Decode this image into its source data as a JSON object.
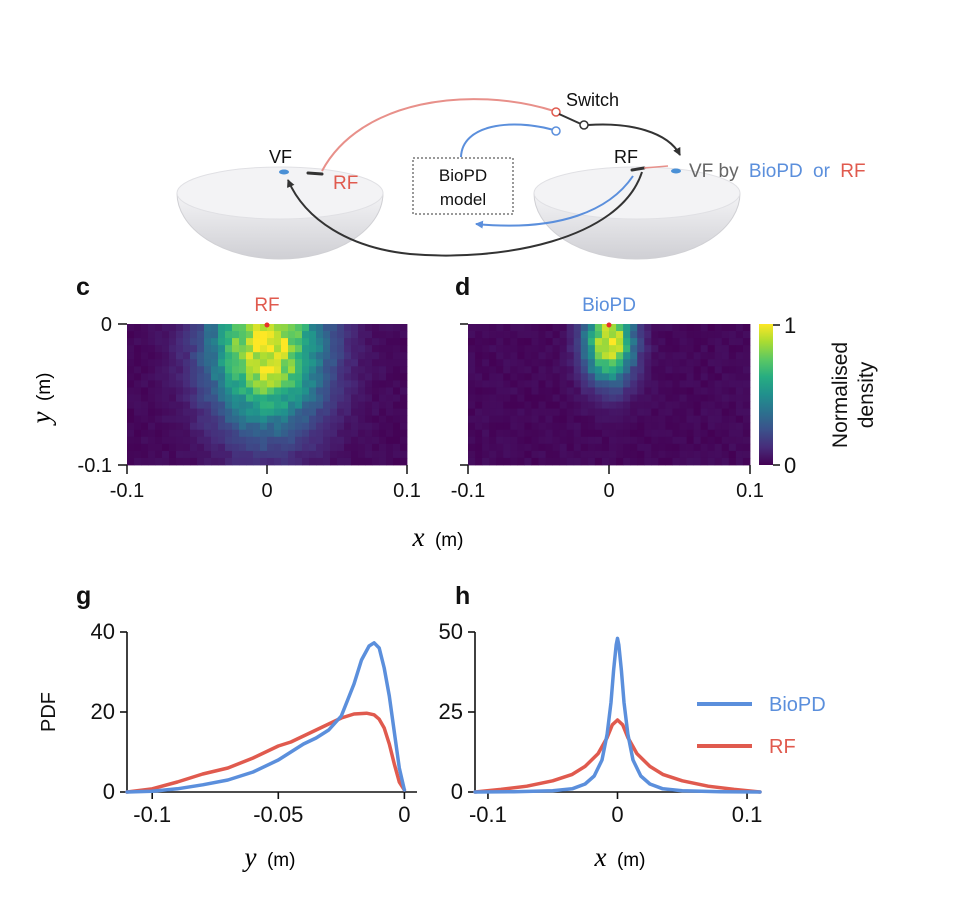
{
  "colors": {
    "biopd": "#5b8fdc",
    "rf": "#e05a4e",
    "rf_light": "#e8908a",
    "dark": "#333333",
    "gray_text": "#666666"
  },
  "schematic": {
    "vf_left": "VF",
    "rf_left": "RF",
    "switch_label": "Switch",
    "model_line1": "BioPD",
    "model_line2": "model",
    "rf_right": "RF",
    "vf_by": "VF by",
    "biopd_word": "BioPD",
    "or_word": "or",
    "rf_word": "RF"
  },
  "panels": {
    "c": {
      "letter": "c",
      "title": "RF"
    },
    "d": {
      "letter": "d",
      "title": "BioPD"
    },
    "g": {
      "letter": "g"
    },
    "h": {
      "letter": "h"
    }
  },
  "colorbar": {
    "label_line1": "Normalised",
    "label_line2": "density",
    "max": "1",
    "min": "0"
  },
  "chart_data": [
    {
      "type": "heatmap",
      "panel": "c",
      "title": "RF",
      "xlabel_var": "x",
      "xlabel_unit": "(m)",
      "ylabel_var": "y",
      "ylabel_unit": "(m)",
      "xlim": [
        -0.1,
        0.1
      ],
      "ylim": [
        -0.1,
        0
      ],
      "xticks": [
        "-0.1",
        "0",
        "0.1"
      ],
      "yticks": [
        "0",
        "-0.1"
      ],
      "peak": {
        "x": 0,
        "y": -0.015
      },
      "spread_x": 0.028,
      "spread_y": 0.04,
      "colormap": "viridis",
      "crange": [
        0,
        1
      ]
    },
    {
      "type": "heatmap",
      "panel": "d",
      "title": "BioPD",
      "xlim": [
        -0.1,
        0.1
      ],
      "ylim": [
        -0.1,
        0
      ],
      "xticks": [
        "-0.1",
        "0",
        "0.1"
      ],
      "peak": {
        "x": 0,
        "y": -0.012
      },
      "spread_x": 0.012,
      "spread_y": 0.02,
      "colormap": "viridis",
      "crange": [
        0,
        1
      ]
    },
    {
      "type": "line",
      "panel": "g",
      "xlabel_var": "y",
      "xlabel_unit": "(m)",
      "ylabel": "PDF",
      "xlim": [
        -0.11,
        0.005
      ],
      "ylim": [
        0,
        40
      ],
      "xticks": [
        -0.1,
        -0.05,
        0
      ],
      "xtick_labels": [
        "-0.1",
        "-0.05",
        "0"
      ],
      "yticks": [
        0,
        20,
        40
      ],
      "ytick_labels": [
        "0",
        "20",
        "40"
      ],
      "series": [
        {
          "name": "BioPD",
          "color": "#5b8fdc",
          "x": [
            -0.11,
            -0.1,
            -0.09,
            -0.08,
            -0.07,
            -0.06,
            -0.05,
            -0.045,
            -0.04,
            -0.035,
            -0.03,
            -0.025,
            -0.02,
            -0.017,
            -0.014,
            -0.012,
            -0.01,
            -0.008,
            -0.006,
            -0.004,
            -0.002,
            0
          ],
          "y": [
            0,
            0.2,
            0.8,
            1.8,
            3,
            5,
            8,
            10,
            12,
            13.5,
            15.5,
            19,
            27,
            33,
            36.5,
            37.3,
            36,
            31,
            24,
            15,
            6,
            0.5
          ]
        },
        {
          "name": "RF",
          "color": "#e05a4e",
          "x": [
            -0.11,
            -0.1,
            -0.09,
            -0.08,
            -0.07,
            -0.06,
            -0.05,
            -0.045,
            -0.04,
            -0.035,
            -0.03,
            -0.025,
            -0.02,
            -0.015,
            -0.012,
            -0.01,
            -0.008,
            -0.006,
            -0.004,
            -0.002,
            0
          ],
          "y": [
            0,
            0.8,
            2.5,
            4.5,
            6,
            8.5,
            11.5,
            12.5,
            14,
            15.5,
            17,
            18.5,
            19.5,
            19.7,
            19.3,
            18.2,
            16,
            12,
            7,
            2.5,
            0.5
          ]
        }
      ]
    },
    {
      "type": "line",
      "panel": "h",
      "xlabel_var": "x",
      "xlabel_unit": "(m)",
      "xlim": [
        -0.11,
        0.11
      ],
      "ylim": [
        0,
        50
      ],
      "xticks": [
        -0.1,
        0,
        0.1
      ],
      "xtick_labels": [
        "-0.1",
        "0",
        "0.1"
      ],
      "yticks": [
        0,
        25,
        50
      ],
      "ytick_labels": [
        "0",
        "25",
        "50"
      ],
      "legend_position": "right",
      "series": [
        {
          "name": "BioPD",
          "color": "#5b8fdc",
          "x": [
            -0.11,
            -0.08,
            -0.05,
            -0.035,
            -0.025,
            -0.018,
            -0.012,
            -0.008,
            -0.005,
            -0.003,
            -0.001,
            0,
            0.001,
            0.003,
            0.005,
            0.008,
            0.012,
            0.018,
            0.025,
            0.035,
            0.05,
            0.08,
            0.11
          ],
          "y": [
            0,
            0.1,
            0.4,
            1,
            2.5,
            5,
            10,
            18,
            28,
            38,
            46,
            48,
            46,
            38,
            28,
            18,
            10,
            5,
            2.5,
            1,
            0.4,
            0.1,
            0
          ]
        },
        {
          "name": "RF",
          "color": "#e05a4e",
          "x": [
            -0.11,
            -0.09,
            -0.07,
            -0.05,
            -0.035,
            -0.025,
            -0.015,
            -0.008,
            -0.004,
            0,
            0.004,
            0.008,
            0.015,
            0.025,
            0.035,
            0.05,
            0.07,
            0.09,
            0.11
          ],
          "y": [
            0,
            0.8,
            1.8,
            3.5,
            5.5,
            8,
            12,
            17,
            21,
            22.5,
            21,
            17,
            12,
            8,
            5.5,
            3.5,
            1.8,
            0.8,
            0
          ]
        }
      ]
    }
  ]
}
